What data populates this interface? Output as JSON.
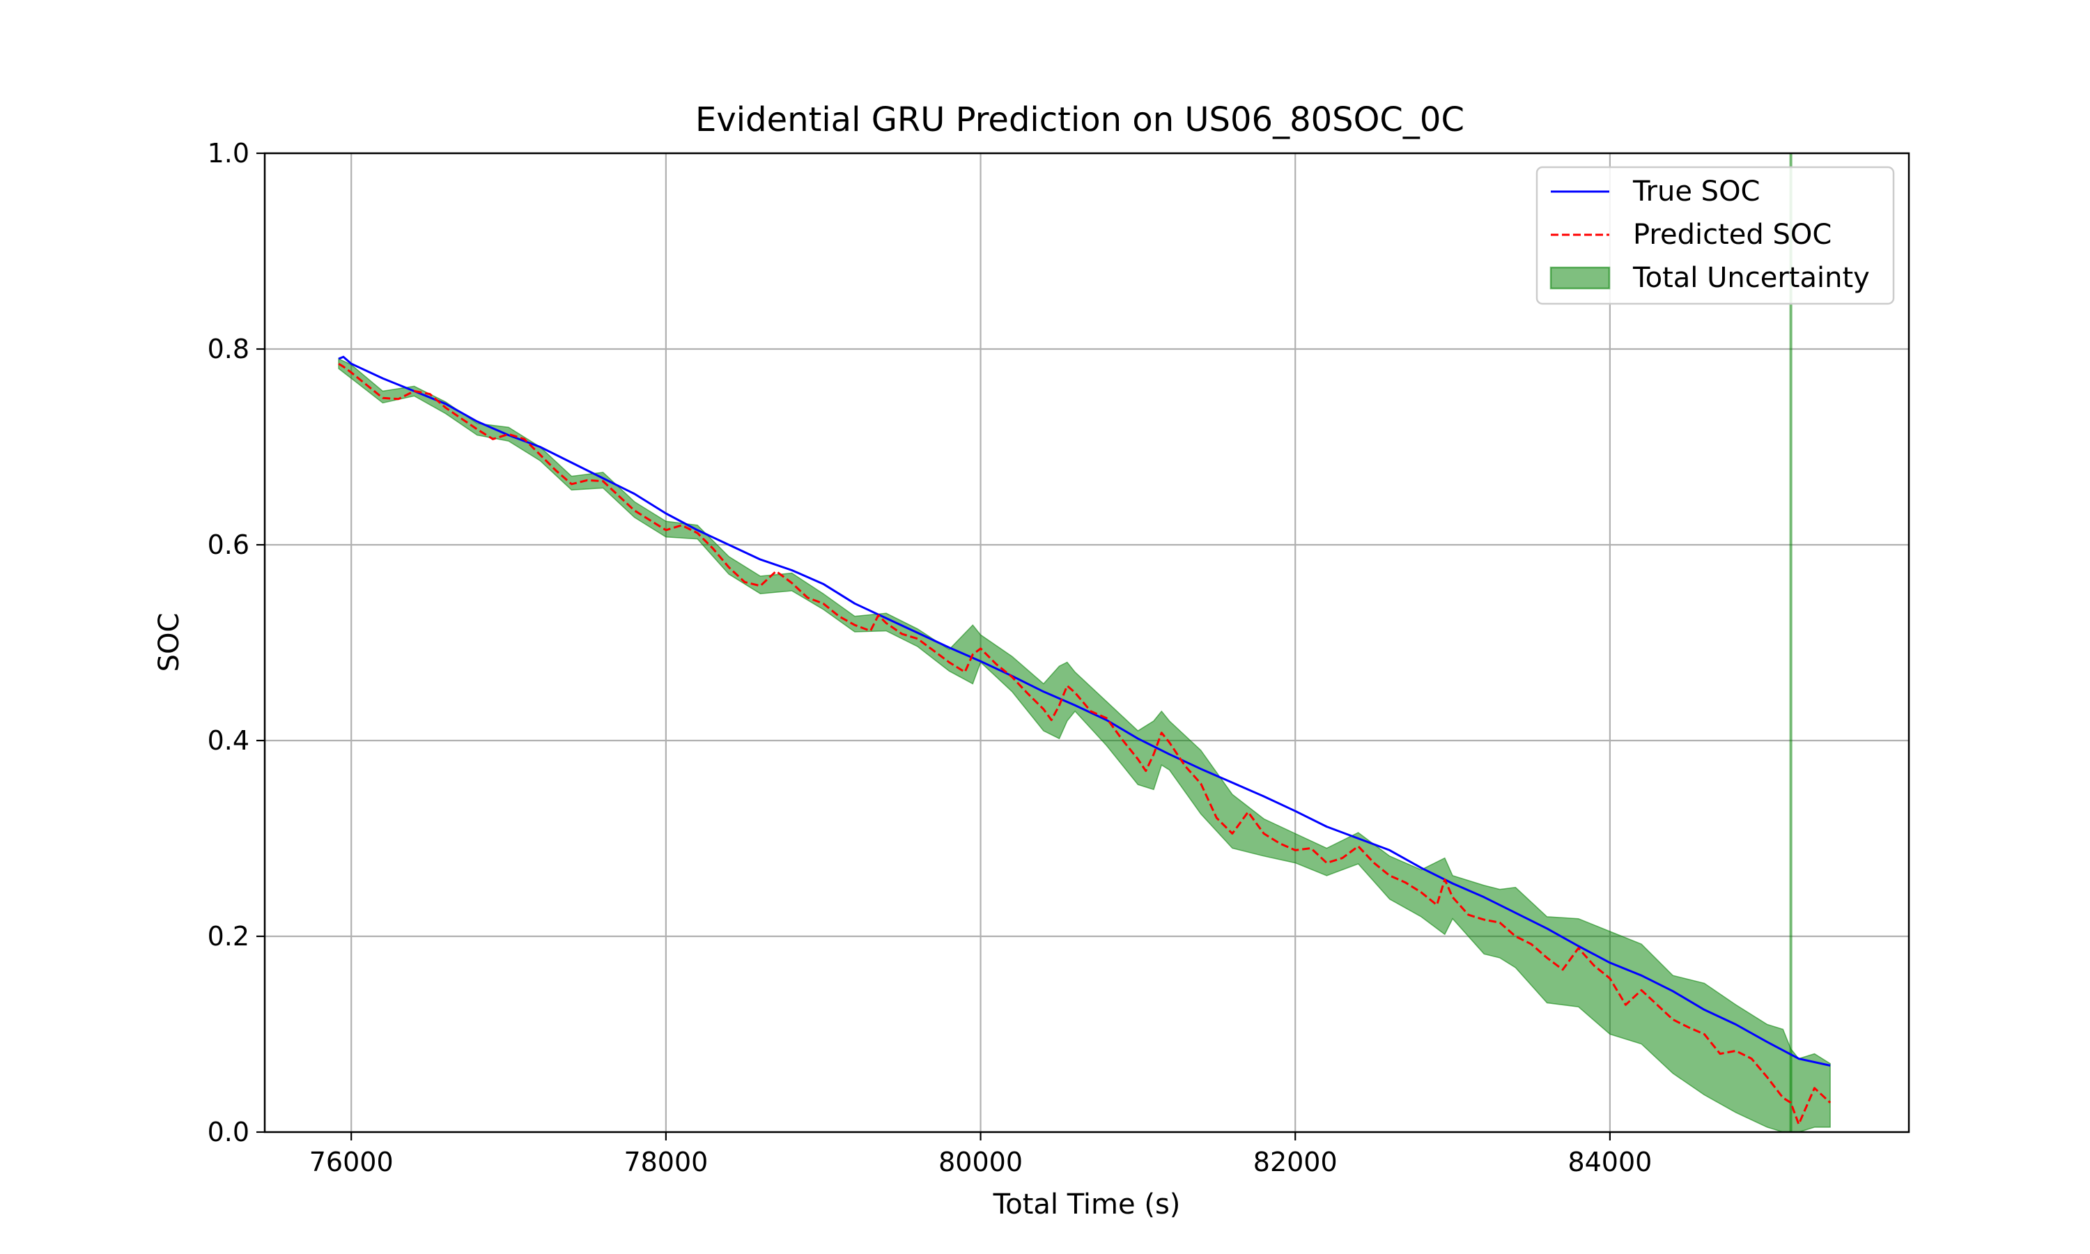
{
  "chart_data": {
    "type": "line",
    "title": "Evidential GRU Prediction on US06_80SOC_0C",
    "xlabel": "Total Time (s)",
    "ylabel": "SOC",
    "xlim": [
      75450,
      85900
    ],
    "ylim": [
      0.0,
      1.0
    ],
    "xticks": [
      76000,
      78000,
      80000,
      82000,
      84000
    ],
    "yticks": [
      0.0,
      0.2,
      0.4,
      0.6,
      0.8,
      1.0
    ],
    "xtick_labels": [
      "76000",
      "78000",
      "80000",
      "82000",
      "84000"
    ],
    "ytick_labels": [
      "0.0",
      "0.2",
      "0.4",
      "0.6",
      "0.8",
      "1.0"
    ],
    "grid": true,
    "legend_position": "upper-right",
    "colors": {
      "true": "#0000ff",
      "predicted": "#ff0000",
      "uncertainty": "#008000"
    },
    "legend": {
      "true": "True SOC",
      "predicted": "Predicted SOC",
      "uncertainty": "Total Uncertainty"
    },
    "series": [
      {
        "key": "true",
        "x": [
          75920,
          75950,
          76000,
          76200,
          76400,
          76600,
          76800,
          77000,
          77200,
          77400,
          77600,
          77800,
          78000,
          78200,
          78400,
          78600,
          78800,
          79000,
          79200,
          79400,
          79600,
          79800,
          80000,
          80200,
          80400,
          80600,
          80800,
          81000,
          81200,
          81400,
          81600,
          81800,
          82000,
          82200,
          82400,
          82600,
          82800,
          83000,
          83200,
          83400,
          83600,
          83800,
          84000,
          84200,
          84400,
          84600,
          84800,
          85000,
          85200,
          85400
        ],
        "y": [
          0.79,
          0.792,
          0.785,
          0.77,
          0.757,
          0.744,
          0.726,
          0.712,
          0.7,
          0.684,
          0.668,
          0.652,
          0.632,
          0.615,
          0.6,
          0.585,
          0.574,
          0.56,
          0.54,
          0.525,
          0.51,
          0.495,
          0.481,
          0.466,
          0.45,
          0.436,
          0.421,
          0.402,
          0.386,
          0.371,
          0.357,
          0.343,
          0.328,
          0.312,
          0.3,
          0.288,
          0.27,
          0.254,
          0.24,
          0.224,
          0.208,
          0.19,
          0.173,
          0.16,
          0.144,
          0.125,
          0.11,
          0.092,
          0.075,
          0.068
        ]
      },
      {
        "key": "predicted",
        "x": [
          75920,
          75950,
          76000,
          76100,
          76200,
          76300,
          76400,
          76500,
          76600,
          76700,
          76800,
          76900,
          77000,
          77100,
          77200,
          77300,
          77400,
          77500,
          77600,
          77700,
          77800,
          77900,
          78000,
          78100,
          78200,
          78300,
          78400,
          78500,
          78600,
          78700,
          78800,
          78900,
          79000,
          79100,
          79200,
          79300,
          79350,
          79400,
          79500,
          79600,
          79700,
          79800,
          79900,
          79950,
          80000,
          80100,
          80200,
          80300,
          80400,
          80450,
          80500,
          80550,
          80600,
          80700,
          80800,
          80900,
          81000,
          81050,
          81100,
          81150,
          81200,
          81300,
          81400,
          81500,
          81600,
          81700,
          81800,
          81900,
          82000,
          82100,
          82200,
          82300,
          82400,
          82500,
          82600,
          82700,
          82800,
          82900,
          82950,
          83000,
          83100,
          83200,
          83300,
          83400,
          83500,
          83600,
          83700,
          83800,
          83900,
          84000,
          84100,
          84200,
          84300,
          84400,
          84500,
          84600,
          84700,
          84800,
          84900,
          85000,
          85100,
          85150,
          85200,
          85300,
          85400
        ],
        "y": [
          0.785,
          0.782,
          0.776,
          0.763,
          0.75,
          0.749,
          0.757,
          0.754,
          0.74,
          0.729,
          0.718,
          0.708,
          0.713,
          0.708,
          0.692,
          0.676,
          0.662,
          0.666,
          0.665,
          0.65,
          0.635,
          0.625,
          0.615,
          0.62,
          0.612,
          0.596,
          0.577,
          0.562,
          0.558,
          0.573,
          0.561,
          0.546,
          0.54,
          0.527,
          0.518,
          0.512,
          0.528,
          0.52,
          0.509,
          0.504,
          0.492,
          0.48,
          0.47,
          0.488,
          0.494,
          0.478,
          0.465,
          0.448,
          0.432,
          0.421,
          0.436,
          0.456,
          0.449,
          0.43,
          0.423,
          0.401,
          0.381,
          0.369,
          0.386,
          0.408,
          0.398,
          0.374,
          0.356,
          0.321,
          0.305,
          0.327,
          0.305,
          0.295,
          0.288,
          0.29,
          0.275,
          0.28,
          0.292,
          0.275,
          0.262,
          0.255,
          0.245,
          0.232,
          0.258,
          0.24,
          0.222,
          0.217,
          0.214,
          0.2,
          0.192,
          0.178,
          0.166,
          0.188,
          0.17,
          0.157,
          0.13,
          0.145,
          0.13,
          0.115,
          0.107,
          0.1,
          0.08,
          0.083,
          0.075,
          0.056,
          0.035,
          0.03,
          0.008,
          0.045,
          0.03
        ]
      },
      {
        "key": "uncertainty",
        "x": [
          75920,
          76000,
          76200,
          76400,
          76600,
          76800,
          77000,
          77200,
          77400,
          77600,
          77800,
          78000,
          78200,
          78400,
          78600,
          78800,
          79000,
          79200,
          79400,
          79600,
          79800,
          79950,
          80000,
          80200,
          80400,
          80500,
          80550,
          80600,
          80800,
          81000,
          81100,
          81150,
          81200,
          81400,
          81600,
          81800,
          82000,
          82200,
          82400,
          82600,
          82800,
          82950,
          83000,
          83200,
          83300,
          83400,
          83600,
          83800,
          84000,
          84200,
          84400,
          84600,
          84800,
          85000,
          85100,
          85150,
          85200,
          85300,
          85400
        ],
        "y_lower": [
          0.78,
          0.77,
          0.745,
          0.752,
          0.734,
          0.712,
          0.706,
          0.686,
          0.656,
          0.658,
          0.628,
          0.608,
          0.606,
          0.57,
          0.55,
          0.553,
          0.534,
          0.511,
          0.512,
          0.496,
          0.471,
          0.458,
          0.48,
          0.45,
          0.41,
          0.402,
          0.42,
          0.43,
          0.395,
          0.355,
          0.35,
          0.375,
          0.37,
          0.325,
          0.29,
          0.282,
          0.275,
          0.262,
          0.274,
          0.238,
          0.22,
          0.202,
          0.218,
          0.182,
          0.178,
          0.168,
          0.132,
          0.128,
          0.1,
          0.09,
          0.06,
          0.038,
          0.02,
          0.005,
          0.0,
          0.0,
          0.0,
          0.005,
          0.005
        ],
        "y_upper": [
          0.79,
          0.784,
          0.757,
          0.762,
          0.746,
          0.724,
          0.72,
          0.7,
          0.67,
          0.674,
          0.644,
          0.624,
          0.62,
          0.588,
          0.568,
          0.571,
          0.55,
          0.527,
          0.53,
          0.514,
          0.493,
          0.518,
          0.508,
          0.486,
          0.458,
          0.476,
          0.48,
          0.47,
          0.44,
          0.41,
          0.42,
          0.43,
          0.42,
          0.39,
          0.345,
          0.32,
          0.305,
          0.29,
          0.306,
          0.282,
          0.268,
          0.28,
          0.262,
          0.252,
          0.248,
          0.25,
          0.22,
          0.218,
          0.205,
          0.192,
          0.16,
          0.152,
          0.13,
          0.11,
          0.105,
          0.085,
          0.075,
          0.08,
          0.07
        ]
      }
    ],
    "vertical_line": {
      "x": 85150
    }
  }
}
